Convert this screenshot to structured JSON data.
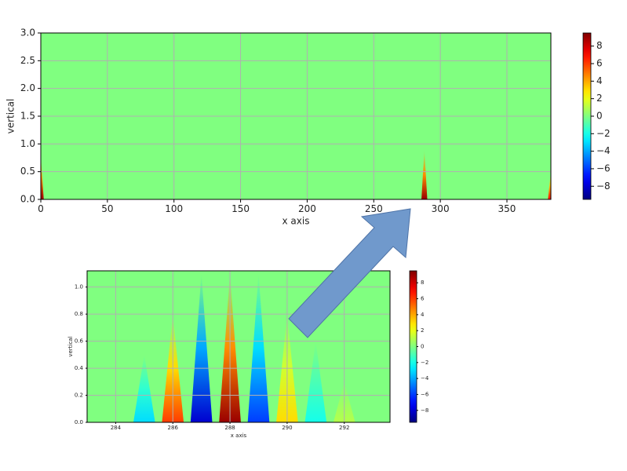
{
  "chart_data": [
    {
      "type": "heatmap",
      "xlabel": "x axis",
      "ylabel": "vertical",
      "x": [
        0,
        288,
        383
      ],
      "values": [
        9,
        9,
        7
      ],
      "peak_heights": [
        0.8,
        0.9,
        0.5
      ],
      "xlim": [
        0,
        383
      ],
      "ylim": [
        0,
        3
      ],
      "xticks": [
        0,
        50,
        100,
        150,
        200,
        250,
        300,
        350
      ],
      "yticks": [
        {
          "value": 0,
          "label": "0.0"
        },
        {
          "value": 0.5,
          "label": "0.5"
        },
        {
          "value": 1,
          "label": "1.0"
        },
        {
          "value": 1.5,
          "label": "1.5"
        },
        {
          "value": 2,
          "label": "2.0"
        },
        {
          "value": 2.5,
          "label": "2.5"
        },
        {
          "value": 3,
          "label": "3.0"
        }
      ],
      "clim": [
        -9.5,
        9.5
      ],
      "cticks": [
        {
          "value": -8,
          "label": "−8"
        },
        {
          "value": -6,
          "label": "−6"
        },
        {
          "value": -4,
          "label": "−4"
        },
        {
          "value": -2,
          "label": "−2"
        },
        0,
        2,
        4,
        6,
        8
      ],
      "colormap": "jet",
      "grid": true
    },
    {
      "type": "heatmap",
      "xlabel": "x axis",
      "ylabel": "vertical",
      "x": [
        285,
        286,
        287,
        288,
        289,
        290,
        291,
        292
      ],
      "values": [
        -3,
        6,
        -8,
        9,
        -6,
        3,
        -2,
        1
      ],
      "peak_heights": [
        0.5,
        0.8,
        1.1,
        1.1,
        1.1,
        0.8,
        0.6,
        0.3
      ],
      "xlim": [
        283,
        293.6
      ],
      "ylim": [
        0,
        1.12
      ],
      "xticks": [
        284,
        286,
        288,
        290,
        292
      ],
      "yticks": [
        {
          "value": 0,
          "label": "0.0"
        },
        {
          "value": 0.2,
          "label": "0.2"
        },
        {
          "value": 0.4,
          "label": "0.4"
        },
        {
          "value": 0.6,
          "label": "0.6"
        },
        {
          "value": 0.8,
          "label": "0.8"
        },
        {
          "value": 1,
          "label": "1.0"
        }
      ],
      "clim": [
        -9.5,
        9.5
      ],
      "cticks": [
        {
          "value": -8,
          "label": "−8"
        },
        {
          "value": -6,
          "label": "−6"
        },
        {
          "value": -4,
          "label": "−4"
        },
        {
          "value": -2,
          "label": "−2"
        },
        0,
        2,
        4,
        6,
        8
      ],
      "colormap": "jet",
      "grid": true
    }
  ]
}
